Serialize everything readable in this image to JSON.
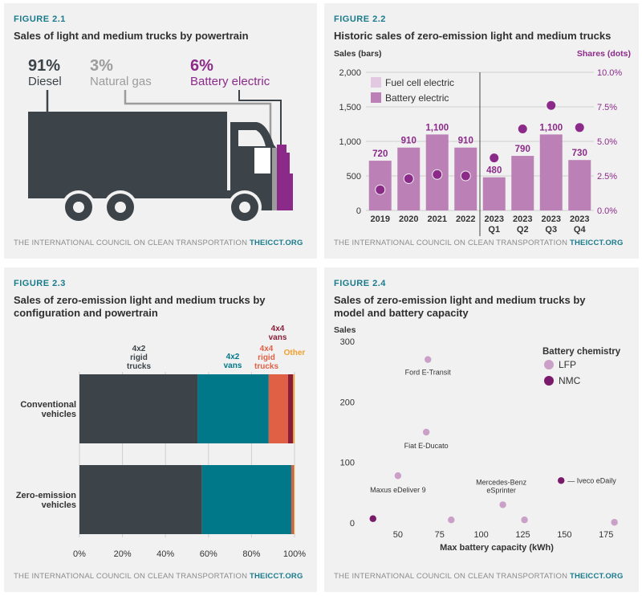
{
  "footer": {
    "org": "THE INTERNATIONAL COUNCIL ON CLEAN TRANSPORTATION",
    "site": "THEICCT.ORG"
  },
  "colors": {
    "dark": "#3d4449",
    "teal": "#00788a",
    "purple": "#8c2a8a",
    "mauve": "#bb80b6",
    "lightmauve": "#e3c8e1",
    "nmc": "#7a1a6a",
    "lfp": "#cba0c8",
    "red": "#e06045",
    "maroon": "#8a1e3a",
    "orange": "#f0a030",
    "gray": "#9c9c9c"
  },
  "fig1": {
    "label": "FIGURE 2.1",
    "title": "Sales of light and medium trucks by powertrain",
    "chart_data": {
      "type": "pie",
      "shares": [
        {
          "pct": "91%",
          "name": "Diesel",
          "color": "#3d4449"
        },
        {
          "pct": "3%",
          "name": "Natural gas",
          "color": "#9c9c9c"
        },
        {
          "pct": "6%",
          "name": "Battery electric",
          "color": "#8c2a8a"
        }
      ]
    }
  },
  "fig2": {
    "label": "FIGURE 2.2",
    "title": "Historic sales of zero-emission light and medium trucks",
    "left_axis_title": "Sales (bars)",
    "right_axis_title": "Shares (dots)",
    "chart_data": {
      "type": "bar",
      "categories": [
        [
          "2019"
        ],
        [
          "2020"
        ],
        [
          "2021"
        ],
        [
          "2022"
        ],
        [
          "2023",
          "Q1"
        ],
        [
          "2023",
          "Q2"
        ],
        [
          "2023",
          "Q3"
        ],
        [
          "2023",
          "Q4"
        ]
      ],
      "series": [
        {
          "name": "Fuel cell electric",
          "values": [
            0,
            0,
            0,
            0,
            0,
            0,
            0,
            0
          ],
          "color": "#e3c8e1"
        },
        {
          "name": "Battery electric",
          "values": [
            720,
            910,
            1100,
            910,
            480,
            790,
            1100,
            730
          ],
          "color": "#bb80b6"
        }
      ],
      "bar_labels": [
        "720",
        "910",
        "1,100",
        "910",
        "480",
        "790",
        "1,100",
        "730"
      ],
      "shares": [
        1.5,
        2.3,
        2.6,
        2.5,
        3.8,
        5.9,
        7.6,
        6.0
      ],
      "ylim": [
        0,
        2000
      ],
      "yticks": [
        "0",
        "500",
        "1,000",
        "1,500",
        "2,000"
      ],
      "y2lim": [
        0,
        10
      ],
      "y2ticks": [
        "0.0%",
        "2.5%",
        "5.0%",
        "7.5%",
        "10.0%"
      ]
    }
  },
  "fig3": {
    "label": "FIGURE 2.3",
    "title": [
      "Sales of zero-emission light and medium trucks by",
      "configuration and powertrain"
    ],
    "chart_data": {
      "type": "bar",
      "orientation": "horizontal-stacked",
      "categories": [
        [
          "Conventional",
          "vehicles"
        ],
        [
          "Zero-emission",
          "vehicles"
        ]
      ],
      "series": [
        {
          "name": [
            "4x2",
            "rigid",
            "trucks"
          ],
          "values": [
            55,
            57
          ],
          "color": "#3d4449"
        },
        {
          "name": [
            "4x2",
            "vans"
          ],
          "values": [
            33,
            41.5
          ],
          "color": "#00788a"
        },
        {
          "name": [
            "4x4",
            "rigid",
            "trucks"
          ],
          "values": [
            9,
            0.7
          ],
          "color": "#e06045"
        },
        {
          "name": [
            "4x4",
            "vans"
          ],
          "values": [
            2.3,
            0.3
          ],
          "color": "#8a1e3a"
        },
        {
          "name": [
            "Other"
          ],
          "values": [
            0.7,
            0.5
          ],
          "color": "#f0a030"
        }
      ],
      "xticks": [
        "0%",
        "20%",
        "40%",
        "60%",
        "80%",
        "100%"
      ],
      "xlim": [
        0,
        100
      ]
    }
  },
  "fig4": {
    "label": "FIGURE 4",
    "label_full": "FIGURE 2.4",
    "title": [
      "Sales of zero-emission light and medium trucks by",
      "model and battery capacity"
    ],
    "ylabel": "Sales",
    "xlabel": "Max battery capacity (kWh)",
    "legend_title": "Battery chemistry",
    "chart_data": {
      "type": "scatter",
      "xlim": [
        25,
        185
      ],
      "ylim": [
        0,
        300
      ],
      "xticks": [
        "50",
        "75",
        "100",
        "125",
        "150",
        "175"
      ],
      "xtick_values": [
        50,
        75,
        100,
        125,
        150,
        175
      ],
      "yticks": [
        "0",
        "100",
        "200",
        "300"
      ],
      "series": [
        {
          "name": "LFP",
          "color": "#cba0c8",
          "points": [
            {
              "x": 68,
              "y": 270,
              "label": "Ford E-Transit"
            },
            {
              "x": 67,
              "y": 150,
              "label": "Fiat E-Ducato"
            },
            {
              "x": 50,
              "y": 78,
              "label": "Maxus eDeliver 9"
            },
            {
              "x": 113,
              "y": 30,
              "label": [
                "Mercedes-Benz",
                "eSprinter"
              ]
            },
            {
              "x": 82,
              "y": 5,
              "label": ""
            },
            {
              "x": 126,
              "y": 5,
              "label": ""
            },
            {
              "x": 180,
              "y": 1,
              "label": ""
            }
          ]
        },
        {
          "name": "NMC",
          "color": "#7a1a6a",
          "points": [
            {
              "x": 148,
              "y": 70,
              "label": "— Iveco eDaily"
            },
            {
              "x": 35,
              "y": 7,
              "label": ""
            }
          ]
        }
      ]
    }
  }
}
